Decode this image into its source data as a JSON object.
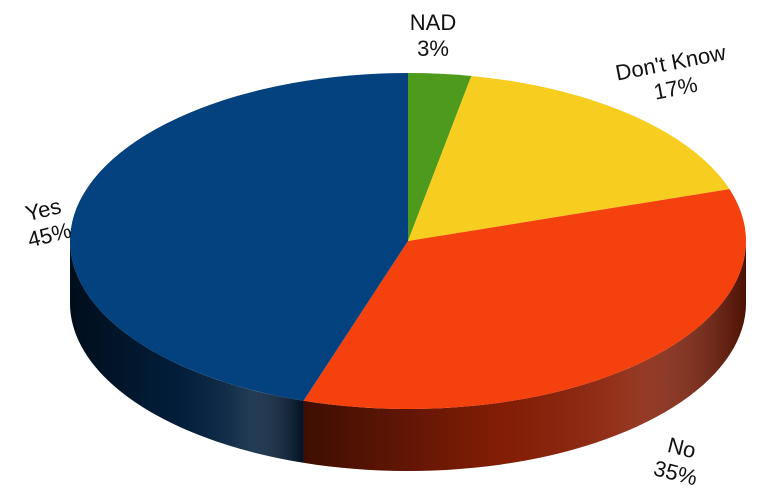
{
  "chart_data": {
    "type": "pie",
    "style": "3d",
    "title": "",
    "slices": [
      {
        "label": "NAD",
        "value": 3,
        "value_label": "3%",
        "color": "#4e9a1c",
        "side_color": "#2f5e10"
      },
      {
        "label": "Don't Know",
        "value": 17,
        "value_label": "17%",
        "color": "#f7cd1f",
        "side_color": "#9a7c0c"
      },
      {
        "label": "No",
        "value": 35,
        "value_label": "35%",
        "color": "#f5410e",
        "side_color": "#8a1f06"
      },
      {
        "label": "Yes",
        "value": 45,
        "value_label": "45%",
        "color": "#03427e",
        "side_color": "#021f3d"
      }
    ],
    "legend": false
  }
}
